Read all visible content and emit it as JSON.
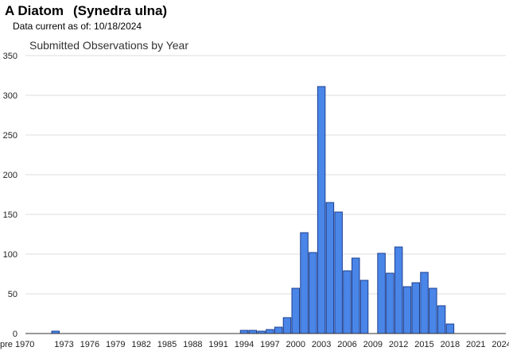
{
  "header": {
    "common_name": "A Diatom",
    "scientific_name": "(Synedra ulna)",
    "data_current": "Data current as of: 10/18/2024"
  },
  "chart_data": {
    "type": "bar",
    "title": "Submitted Observations by Year",
    "xlabel": "",
    "ylabel": "",
    "ylim": [
      0,
      350
    ],
    "yticks": [
      0,
      50,
      100,
      150,
      200,
      250,
      300,
      350
    ],
    "grid": true,
    "categories": [
      "pre 1970",
      "1970",
      "1971",
      "1972",
      "1973",
      "1974",
      "1975",
      "1976",
      "1977",
      "1978",
      "1979",
      "1980",
      "1981",
      "1982",
      "1983",
      "1984",
      "1985",
      "1986",
      "1987",
      "1988",
      "1989",
      "1990",
      "1991",
      "1992",
      "1993",
      "1994",
      "1995",
      "1996",
      "1997",
      "1998",
      "1999",
      "2000",
      "2001",
      "2002",
      "2003",
      "2004",
      "2005",
      "2006",
      "2007",
      "2008",
      "2009",
      "2010",
      "2011",
      "2012",
      "2013",
      "2014",
      "2015",
      "2016",
      "2017",
      "2018",
      "2019",
      "2020",
      "2021",
      "2022",
      "2023",
      "2024"
    ],
    "x_tick_labels": [
      "pre 1970",
      "1973",
      "1976",
      "1979",
      "1982",
      "1985",
      "1988",
      "1991",
      "1994",
      "1997",
      "2000",
      "2003",
      "2006",
      "2009",
      "2012",
      "2015",
      "2018",
      "2021",
      "2024"
    ],
    "values": [
      0,
      0,
      0,
      3,
      0,
      0,
      0,
      0,
      0,
      0,
      0,
      0,
      0,
      0,
      0,
      0,
      0,
      0,
      0,
      0,
      0,
      0,
      0,
      0,
      0,
      4,
      4,
      3,
      5,
      8,
      20,
      57,
      127,
      102,
      311,
      165,
      153,
      79,
      95,
      67,
      0,
      101,
      76,
      109,
      59,
      64,
      77,
      57,
      35,
      12,
      0,
      0,
      0,
      0,
      0,
      0
    ],
    "bar_color": "#4a86e8",
    "bar_border_color": "#1c3f8f"
  }
}
